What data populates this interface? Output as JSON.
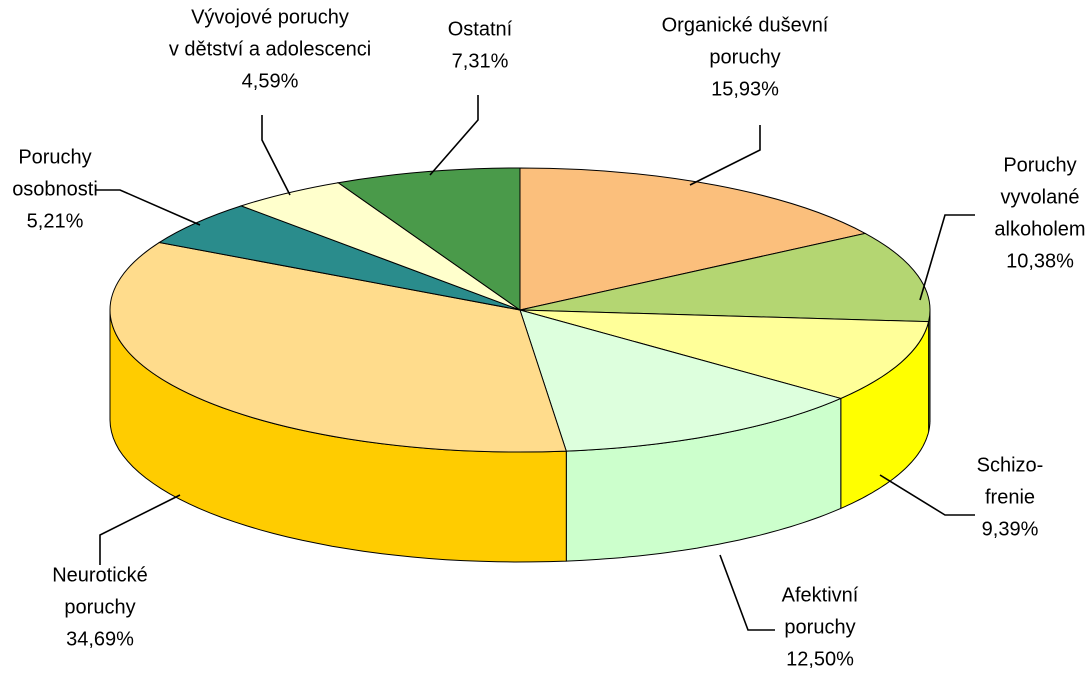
{
  "chart_data": {
    "type": "pie3d",
    "categories": [
      [
        "Organické duševní",
        "poruchy"
      ],
      [
        "Poruchy",
        "vyvolané",
        "alkoholem"
      ],
      [
        "Schizo-",
        "frenie"
      ],
      [
        "Afektivní",
        "poruchy"
      ],
      [
        "Neurotické",
        "poruchy"
      ],
      [
        "Poruchy",
        "osobnosti"
      ],
      [
        "Vývojové poruchy",
        "v dětství a adolescenci"
      ],
      [
        "Ostatní"
      ]
    ],
    "values": [
      15.93,
      10.38,
      9.39,
      12.5,
      34.69,
      5.21,
      4.59,
      7.31
    ],
    "value_labels": [
      "15,93%",
      "10,38%",
      "9,39%",
      "12,50%",
      "34,69%",
      "5,21%",
      "4,59%",
      "7,31%"
    ],
    "colors": [
      "#fbbf7c",
      "#b4d672",
      "#ffff99",
      "#ddffdd",
      "#ffdc8c",
      "#2a8c8c",
      "#ffffcc",
      "#4a9a4a"
    ],
    "side_colors": [
      "#f5a050",
      "#8cbc3c",
      "#ffff00",
      "#ccffcc",
      "#ffcc00",
      "#1a6a6a",
      "#ffffaa",
      "#2f7a2f"
    ]
  }
}
